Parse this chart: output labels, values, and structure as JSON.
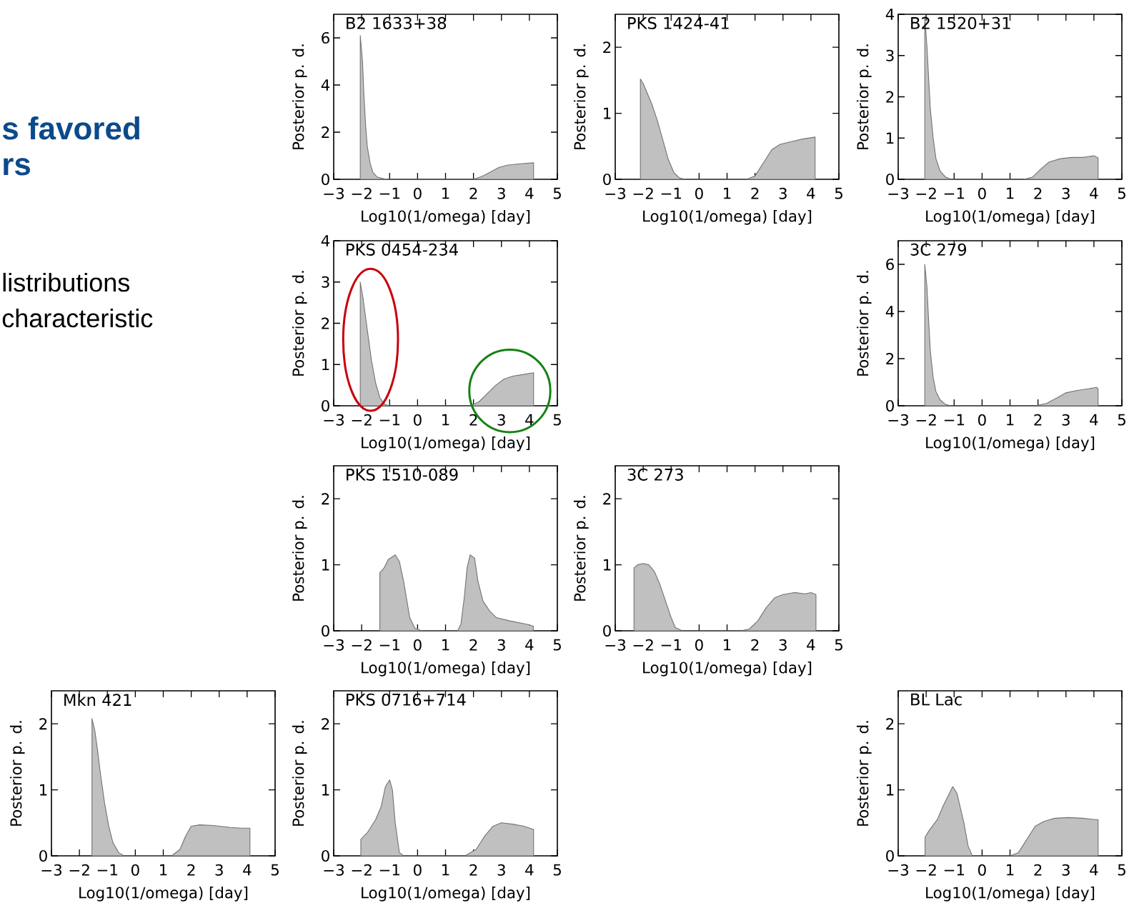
{
  "chart_data": [
    {
      "type": "other",
      "title": "s favored",
      "subtitle": "rs",
      "annotations": [
        "listributions",
        "characteristic"
      ]
    },
    {
      "type": "area",
      "title": "B2 1633+38",
      "xlabel": "Log10(1/omega) [day]",
      "ylabel": "Posterior p. d.",
      "color": "#c0c0c0",
      "xlim": [
        -3,
        5
      ],
      "ylim": [
        0,
        7
      ],
      "xticks": [
        {
          "value": -3,
          "label": "−3"
        },
        {
          "value": -2,
          "label": "−2"
        },
        {
          "value": -1,
          "label": "−1"
        },
        0,
        1,
        2,
        3,
        4,
        5
      ],
      "yticks": [
        0,
        2,
        4,
        6
      ],
      "x": [
        -2.05,
        -2.05,
        -1.97,
        -1.92,
        -1.86,
        -1.8,
        -1.7,
        -1.6,
        -1.45,
        -1.2,
        -1,
        2,
        2.3,
        2.6,
        2.9,
        3.2,
        3.6,
        4.15,
        4.15
      ],
      "values": [
        0,
        6.1,
        5,
        3.6,
        2.3,
        1.4,
        0.7,
        0.3,
        0.1,
        0.02,
        0,
        0,
        0.12,
        0.3,
        0.5,
        0.6,
        0.65,
        0.7,
        0
      ]
    },
    {
      "type": "area",
      "title": "PKS 1424-41",
      "xlabel": "Log10(1/omega) [day]",
      "ylabel": "Posterior p. d.",
      "color": "#c0c0c0",
      "xlim": [
        -3,
        5
      ],
      "ylim": [
        0,
        2.5
      ],
      "xticks": [
        {
          "value": -3,
          "label": "−3"
        },
        {
          "value": -2,
          "label": "−2"
        },
        {
          "value": -1,
          "label": "−1"
        },
        0,
        1,
        2,
        3,
        4,
        5
      ],
      "yticks": [
        0,
        1,
        2
      ],
      "x": [
        -2.1,
        -2.1,
        -2,
        -1.9,
        -1.7,
        -1.5,
        -1.3,
        -1.1,
        -0.9,
        -0.7,
        -0.5,
        1.7,
        2,
        2.3,
        2.6,
        2.9,
        3.3,
        3.7,
        4.15,
        4.15
      ],
      "values": [
        0,
        1.52,
        1.45,
        1.35,
        1.15,
        0.9,
        0.6,
        0.3,
        0.1,
        0.02,
        0,
        0,
        0.05,
        0.25,
        0.45,
        0.53,
        0.57,
        0.61,
        0.64,
        0
      ]
    },
    {
      "type": "area",
      "title": "B2 1520+31",
      "xlabel": "Log10(1/omega) [day]",
      "ylabel": "Posterior p. d.",
      "color": "#c0c0c0",
      "xlim": [
        -3,
        5
      ],
      "ylim": [
        0,
        4
      ],
      "xticks": [
        {
          "value": -3,
          "label": "−3"
        },
        {
          "value": -2,
          "label": "−2"
        },
        {
          "value": -1,
          "label": "−1"
        },
        0,
        1,
        2,
        3,
        4,
        5
      ],
      "yticks": [
        0,
        1,
        2,
        3,
        4
      ],
      "x": [
        -2.05,
        -2.05,
        -1.97,
        -1.9,
        -1.85,
        -1.75,
        -1.65,
        -1.5,
        -1.3,
        -1.1,
        1.5,
        1.8,
        2.1,
        2.4,
        2.8,
        3.2,
        3.6,
        4,
        4.15,
        4.15
      ],
      "values": [
        0,
        3.95,
        3.2,
        2.3,
        1.7,
        1,
        0.5,
        0.2,
        0.05,
        0,
        0,
        0.05,
        0.25,
        0.42,
        0.5,
        0.53,
        0.53,
        0.57,
        0.52,
        0
      ]
    },
    {
      "type": "area",
      "title": "PKS 0454-234",
      "xlabel": "Log10(1/omega) [day]",
      "ylabel": "Posterior p. d.",
      "color": "#c0c0c0",
      "xlim": [
        -3,
        5
      ],
      "ylim": [
        0,
        4
      ],
      "xticks": [
        {
          "value": -3,
          "label": "−3"
        },
        {
          "value": -2,
          "label": "−2"
        },
        {
          "value": -1,
          "label": "−1"
        },
        0,
        1,
        2,
        3,
        4,
        5
      ],
      "yticks": [
        0,
        1,
        2,
        3,
        4
      ],
      "x": [
        -2.05,
        -2.05,
        -1.95,
        -1.85,
        -1.75,
        -1.65,
        -1.5,
        -1.35,
        -1.2,
        -1.05,
        1.9,
        2.2,
        2.5,
        2.8,
        3.1,
        3.4,
        3.8,
        4.15,
        4.15
      ],
      "values": [
        0,
        3,
        2.6,
        2.1,
        1.6,
        1.1,
        0.55,
        0.2,
        0.05,
        0,
        0,
        0.1,
        0.3,
        0.5,
        0.65,
        0.72,
        0.76,
        0.8,
        0
      ]
    },
    {
      "type": "area",
      "title": "3C 279",
      "xlabel": "Log10(1/omega) [day]",
      "ylabel": "Posterior p. d.",
      "color": "#c0c0c0",
      "xlim": [
        -3,
        5
      ],
      "ylim": [
        0,
        7
      ],
      "xticks": [
        {
          "value": -3,
          "label": "−3"
        },
        {
          "value": -2,
          "label": "−2"
        },
        {
          "value": -1,
          "label": "−1"
        },
        0,
        1,
        2,
        3,
        4,
        5
      ],
      "yticks": [
        0,
        2,
        4,
        6
      ],
      "x": [
        -2.05,
        -2.05,
        -1.97,
        -1.92,
        -1.85,
        -1.75,
        -1.65,
        -1.5,
        -1.3,
        -1.1,
        1.9,
        2.3,
        2.7,
        3,
        3.4,
        3.8,
        4.1,
        4.15,
        4.15
      ],
      "values": [
        0,
        6.0,
        5,
        3.8,
        2.3,
        1.2,
        0.6,
        0.25,
        0.05,
        0,
        0,
        0.1,
        0.35,
        0.55,
        0.65,
        0.72,
        0.78,
        0.72,
        0
      ]
    },
    {
      "type": "area",
      "title": "PKS 1510-089",
      "xlabel": "Log10(1/omega) [day]",
      "ylabel": "Posterior p. d.",
      "color": "#c0c0c0",
      "xlim": [
        -3,
        5
      ],
      "ylim": [
        0,
        2.5
      ],
      "xticks": [
        {
          "value": -3,
          "label": "−3"
        },
        {
          "value": -2,
          "label": "−2"
        },
        {
          "value": -1,
          "label": "−1"
        },
        0,
        1,
        2,
        3,
        4,
        5
      ],
      "yticks": [
        0,
        1,
        2
      ],
      "x": [
        -1.35,
        -1.35,
        -1.2,
        -1.05,
        -0.8,
        -0.65,
        -0.5,
        -0.4,
        -0.28,
        -0.1,
        0.15,
        1.43,
        1.55,
        1.67,
        1.77,
        1.88,
        2.04,
        2.16,
        2.34,
        2.58,
        2.82,
        3.3,
        3.9,
        4.14,
        4.14
      ],
      "values": [
        0,
        0.88,
        0.95,
        1.08,
        1.15,
        1.05,
        0.75,
        0.5,
        0.2,
        0.04,
        0,
        0,
        0.1,
        0.5,
        0.95,
        1.15,
        1.1,
        0.75,
        0.45,
        0.3,
        0.2,
        0.15,
        0.1,
        0.07,
        0
      ]
    },
    {
      "type": "area",
      "title": "3C 273",
      "xlabel": "Log10(1/omega) [day]",
      "ylabel": "Posterior p. d.",
      "color": "#c0c0c0",
      "xlim": [
        -3,
        5
      ],
      "ylim": [
        0,
        2.5
      ],
      "xticks": [
        {
          "value": -3,
          "label": "−3"
        },
        {
          "value": -2,
          "label": "−2"
        },
        {
          "value": -1,
          "label": "−1"
        },
        0,
        1,
        2,
        3,
        4,
        5
      ],
      "yticks": [
        0,
        1,
        2
      ],
      "x": [
        -2.33,
        -2.33,
        -2.2,
        -2,
        -1.8,
        -1.6,
        -1.4,
        -1.2,
        -1,
        -0.85,
        -0.6,
        1.5,
        1.8,
        2.1,
        2.4,
        2.7,
        3,
        3.4,
        3.8,
        4,
        4.18,
        4.18
      ],
      "values": [
        0,
        0.95,
        1,
        1.02,
        1,
        0.9,
        0.7,
        0.45,
        0.2,
        0.05,
        0,
        0,
        0.03,
        0.15,
        0.35,
        0.5,
        0.55,
        0.58,
        0.56,
        0.58,
        0.55,
        0
      ]
    },
    {
      "type": "area",
      "title": "Mkn 421",
      "xlabel": "Log10(1/omega) [day]",
      "ylabel": "Posterior p. d.",
      "color": "#c0c0c0",
      "xlim": [
        -3,
        5
      ],
      "ylim": [
        0,
        2.5
      ],
      "xticks": [
        {
          "value": -3,
          "label": "−3"
        },
        {
          "value": -2,
          "label": "−2"
        },
        {
          "value": -1,
          "label": "−1"
        },
        0,
        1,
        2,
        3,
        4,
        5
      ],
      "yticks": [
        0,
        1,
        2
      ],
      "x": [
        -1.55,
        -1.55,
        -1.45,
        -1.35,
        -1.25,
        -1.1,
        -0.95,
        -0.8,
        -0.6,
        -0.4,
        1.3,
        1.6,
        1.8,
        2,
        2.3,
        2.8,
        3.4,
        3.8,
        4.1,
        4.1
      ],
      "values": [
        0,
        2.08,
        1.9,
        1.6,
        1.25,
        0.8,
        0.45,
        0.2,
        0.05,
        0,
        0,
        0.1,
        0.3,
        0.45,
        0.47,
        0.46,
        0.43,
        0.42,
        0.42,
        0
      ]
    },
    {
      "type": "area",
      "title": "PKS 0716+714",
      "xlabel": "Log10(1/omega) [day]",
      "ylabel": "Posterior p. d.",
      "color": "#c0c0c0",
      "xlim": [
        -3,
        5
      ],
      "ylim": [
        0,
        2.5
      ],
      "xticks": [
        {
          "value": -3,
          "label": "−3"
        },
        {
          "value": -2,
          "label": "−2"
        },
        {
          "value": -1,
          "label": "−1"
        },
        0,
        1,
        2,
        3,
        4,
        5
      ],
      "yticks": [
        0,
        1,
        2
      ],
      "x": [
        -2.03,
        -2.03,
        -1.8,
        -1.5,
        -1.3,
        -1.15,
        -1,
        -0.9,
        -0.8,
        -0.65,
        -0.5,
        1.7,
        2.1,
        2.4,
        2.7,
        3,
        3.4,
        3.8,
        4.15,
        4.15
      ],
      "values": [
        0,
        0.25,
        0.35,
        0.55,
        0.75,
        1.05,
        1.15,
        1,
        0.5,
        0.05,
        0,
        0,
        0.1,
        0.3,
        0.45,
        0.5,
        0.48,
        0.45,
        0.4,
        0
      ]
    },
    {
      "type": "area",
      "title": "BL Lac",
      "xlabel": "Log10(1/omega) [day]",
      "ylabel": "Posterior p. d.",
      "color": "#c0c0c0",
      "xlim": [
        -3,
        5
      ],
      "ylim": [
        0,
        2.5
      ],
      "xticks": [
        {
          "value": -3,
          "label": "−3"
        },
        {
          "value": -2,
          "label": "−2"
        },
        {
          "value": -1,
          "label": "−1"
        },
        0,
        1,
        2,
        3,
        4,
        5
      ],
      "yticks": [
        0,
        1,
        2
      ],
      "x": [
        -2.04,
        -2.04,
        -1.9,
        -1.6,
        -1.4,
        -1.05,
        -0.9,
        -0.65,
        -0.5,
        -0.35,
        1,
        1.3,
        1.6,
        1.9,
        2.2,
        2.6,
        3.1,
        3.6,
        4.05,
        4.15,
        4.15
      ],
      "values": [
        0,
        0.28,
        0.38,
        0.55,
        0.75,
        1.05,
        0.95,
        0.5,
        0.15,
        0,
        0,
        0.05,
        0.25,
        0.45,
        0.52,
        0.57,
        0.58,
        0.57,
        0.55,
        0.55,
        0
      ]
    }
  ]
}
